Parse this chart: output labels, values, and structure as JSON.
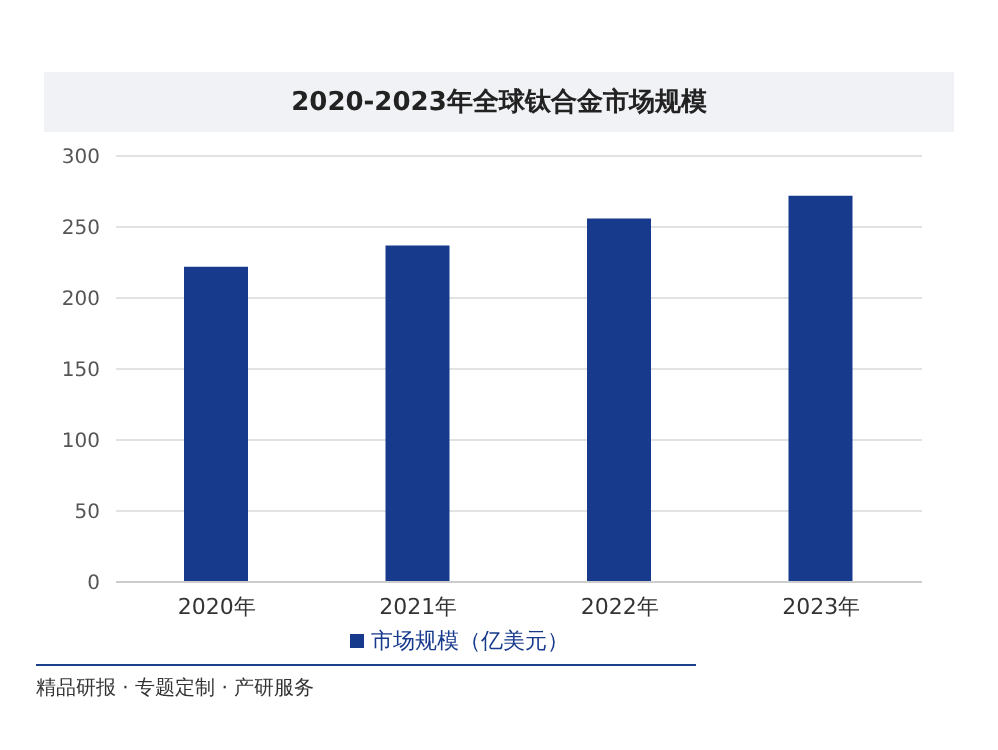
{
  "chart_data": {
    "type": "bar",
    "title": "2020-2023年全球钛合金市场规模",
    "categories": [
      "2020年",
      "2021年",
      "2022年",
      "2023年"
    ],
    "series": [
      {
        "name": "市场规模（亿美元）",
        "color": "#173a8c",
        "values": [
          222,
          237,
          256,
          272
        ]
      }
    ],
    "ylim": [
      0,
      300
    ],
    "yticks": [
      0,
      50,
      100,
      150,
      200,
      250,
      300
    ],
    "grid": "y",
    "legend": "bottom",
    "annotations": [
      "精品研报 · 专题定制 · 产研服务"
    ]
  }
}
